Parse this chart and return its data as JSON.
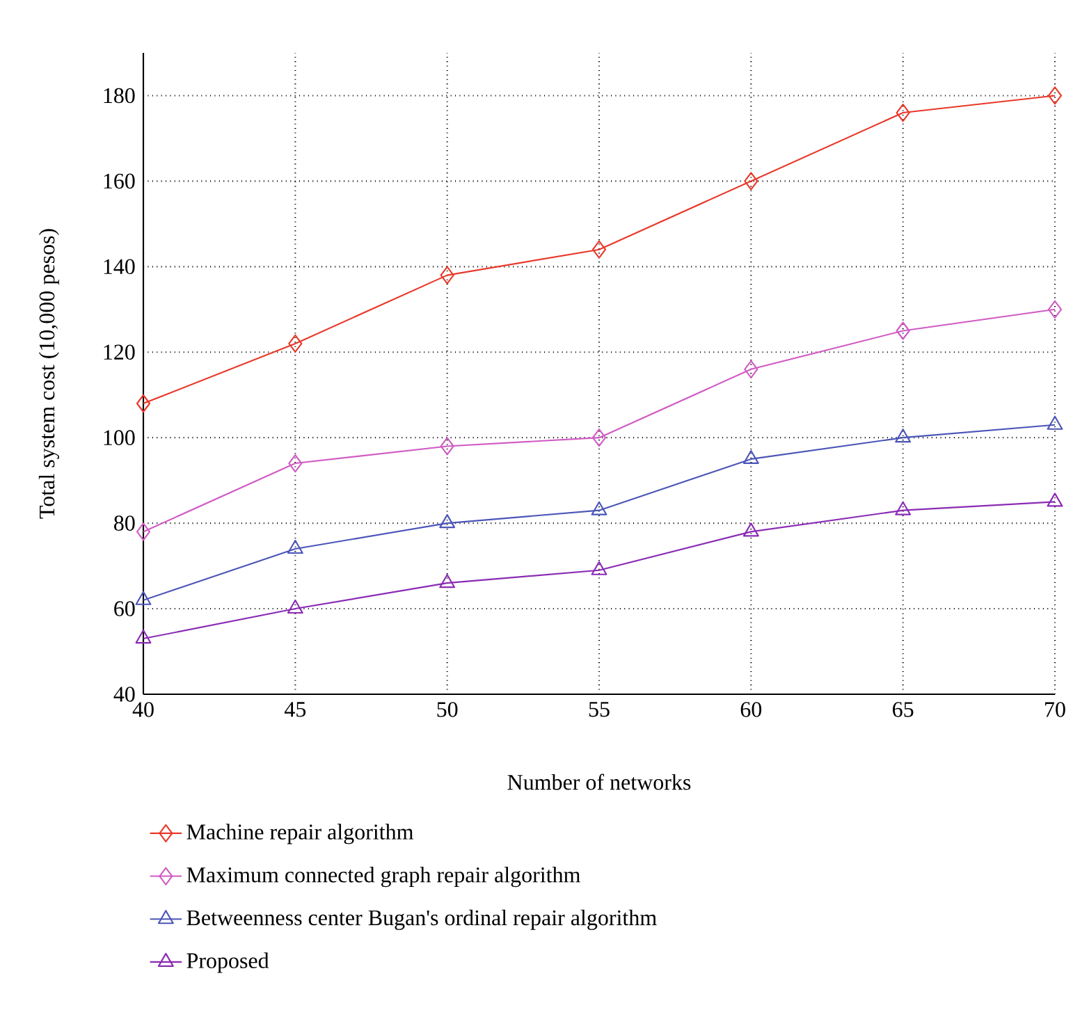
{
  "chart_data": {
    "type": "line",
    "xlabel": "Number of networks",
    "ylabel": "Total system cost (10,000 pesos)",
    "x": [
      40,
      45,
      50,
      55,
      60,
      65,
      70
    ],
    "xlim": [
      40,
      70
    ],
    "xticks": [
      40,
      45,
      50,
      55,
      60,
      65,
      70
    ],
    "ylim": [
      40,
      190
    ],
    "yticks": [
      40,
      60,
      80,
      100,
      120,
      140,
      160,
      180
    ],
    "grid": true,
    "legend": "bottom",
    "line_style": "solid",
    "series": [
      {
        "name": "Machine repair algorithm",
        "color": "#e8392a",
        "marker": "diamond",
        "values": [
          108,
          122,
          138,
          144,
          160,
          176,
          180
        ]
      },
      {
        "name": "Maximum connected graph repair algorithm",
        "color": "#d05bc4",
        "marker": "diamond",
        "values": [
          78,
          94,
          98,
          100,
          116,
          125,
          130
        ]
      },
      {
        "name": "Betweenness center Bugan's ordinal repair algorithm",
        "color": "#4b55b8",
        "marker": "triangle",
        "values": [
          62,
          74,
          80,
          83,
          95,
          100,
          103
        ]
      },
      {
        "name": "Proposed",
        "color": "#8a2bb5",
        "marker": "triangle",
        "values": [
          53,
          60,
          66,
          69,
          78,
          83,
          85
        ]
      }
    ]
  }
}
